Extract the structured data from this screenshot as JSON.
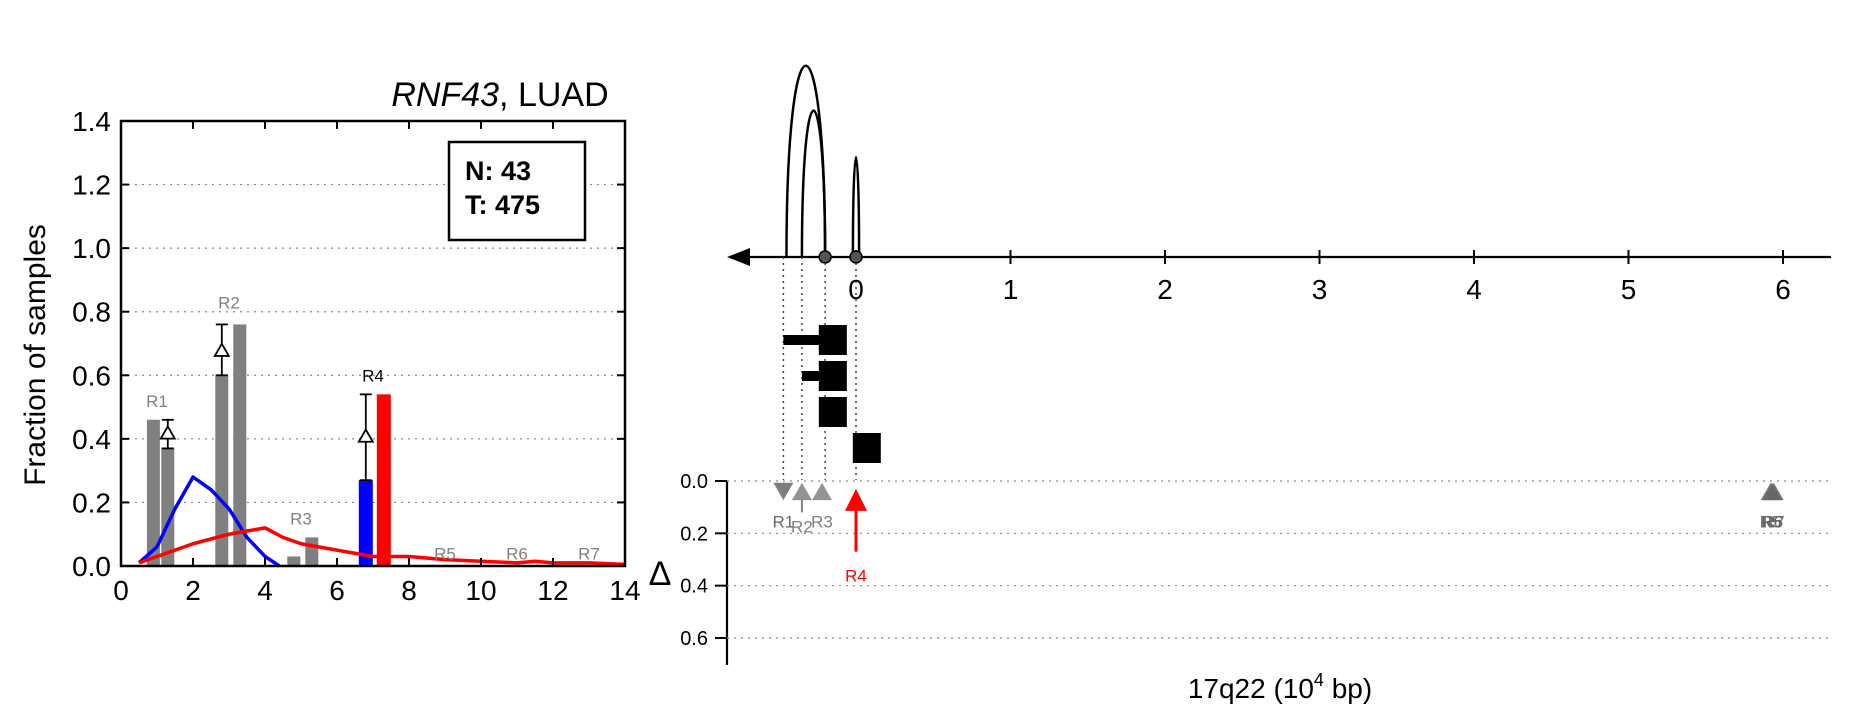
{
  "left_panel": {
    "title_gene": "RNF43",
    "title_rest": ", LUAD",
    "ylabel": "Fraction of samples",
    "legend_n": "N: 43",
    "legend_t": "T: 475"
  },
  "right_panel": {
    "xlabel_main": "17q22 (10",
    "xlabel_sup": "4",
    "xlabel_tail": " bp)",
    "delta_axis_label": "Δ"
  },
  "chart_data": [
    {
      "type": "bar",
      "title": "RNF43, LUAD",
      "xlabel": "",
      "ylabel": "Fraction of samples",
      "xlim": [
        0,
        14
      ],
      "ylim": [
        0,
        1.4
      ],
      "x_ticks": [
        "0",
        "2",
        "4",
        "6",
        "8",
        "10",
        "12",
        "14"
      ],
      "y_ticks": [
        "0.0",
        "0.2",
        "0.4",
        "0.6",
        "0.8",
        "1.0",
        "1.2",
        "1.4"
      ],
      "grid": "horizontal dotted",
      "legend_box": [
        "N: 43",
        "T: 475"
      ],
      "bars": [
        {
          "x": 0.9,
          "value": 0.46,
          "color": "#808080"
        },
        {
          "x": 1.3,
          "value": 0.37,
          "color": "#808080"
        },
        {
          "x": 2.8,
          "value": 0.6,
          "color": "#808080"
        },
        {
          "x": 3.3,
          "value": 0.76,
          "color": "#808080"
        },
        {
          "x": 4.8,
          "value": 0.03,
          "color": "#808080"
        },
        {
          "x": 5.3,
          "value": 0.09,
          "color": "#808080"
        },
        {
          "x": 6.8,
          "value": 0.27,
          "color": "#0000ff"
        },
        {
          "x": 7.3,
          "value": 0.54,
          "color": "#ff0000"
        }
      ],
      "region_labels": [
        {
          "label": "R1",
          "x": 1.0,
          "y": 0.5,
          "color": "#808080"
        },
        {
          "label": "R2",
          "x": 3.0,
          "y": 0.81,
          "color": "#808080"
        },
        {
          "label": "R3",
          "x": 5.0,
          "y": 0.13,
          "color": "#808080"
        },
        {
          "label": "R4",
          "x": 7.0,
          "y": 0.58,
          "color": "#000000"
        },
        {
          "label": "R5",
          "x": 9.0,
          "y": 0.02,
          "color": "#808080"
        },
        {
          "label": "R6",
          "x": 11.0,
          "y": 0.02,
          "color": "#808080"
        },
        {
          "label": "R7",
          "x": 13.0,
          "y": 0.02,
          "color": "#808080"
        }
      ],
      "delta_markers": [
        {
          "x": 1.3,
          "y": 0.42,
          "low": 0.37,
          "high": 0.46
        },
        {
          "x": 2.8,
          "y": 0.68,
          "low": 0.6,
          "high": 0.76
        },
        {
          "x": 6.8,
          "y": 0.41,
          "low": 0.27,
          "high": 0.54
        }
      ],
      "series": [
        {
          "color": "#0000ff",
          "x": [
            0.5,
            1.0,
            1.5,
            2.0,
            2.5,
            3.0,
            3.5,
            4.0,
            4.4
          ],
          "y": [
            0.01,
            0.06,
            0.18,
            0.28,
            0.24,
            0.18,
            0.09,
            0.03,
            0.0
          ]
        },
        {
          "color": "#ff0000",
          "x": [
            0.5,
            1.0,
            2.0,
            3.0,
            3.5,
            4.0,
            4.5,
            5.0,
            6.0,
            7.0,
            8.0,
            9.0,
            10.0,
            11.0,
            11.5,
            12.0,
            13.0,
            14.0
          ],
          "y": [
            0.01,
            0.03,
            0.07,
            0.1,
            0.11,
            0.12,
            0.09,
            0.07,
            0.05,
            0.03,
            0.03,
            0.02,
            0.015,
            0.01,
            0.015,
            0.01,
            0.01,
            0.005
          ]
        }
      ]
    },
    {
      "type": "scatter",
      "xlabel": "17q22 (10^4 bp)",
      "xlim": [
        -0.8,
        6.3
      ],
      "x_ticks": [
        "0",
        "1",
        "2",
        "3",
        "4",
        "5",
        "6"
      ],
      "arcs": [
        {
          "start": -0.45,
          "end": -0.2,
          "height": 1.0
        },
        {
          "start": -0.35,
          "end": -0.2,
          "height": 0.74
        },
        {
          "start": -0.02,
          "end": 0.02,
          "height": 0.47
        }
      ],
      "nodes": [
        -0.2,
        0.0
      ],
      "blocks": [
        {
          "x": -0.15,
          "row": 0,
          "stem_from": -0.47
        },
        {
          "x": -0.15,
          "row": 1,
          "stem_from": -0.35
        },
        {
          "x": -0.15,
          "row": 2,
          "stem_from": null
        },
        {
          "x": 0.07,
          "row": 3,
          "stem_from": 0.0
        }
      ],
      "dotted_links": [
        -0.47,
        -0.35,
        -0.2,
        0.0
      ],
      "delta_ylim": [
        0.0,
        0.6
      ],
      "delta_ticks": [
        "0.0",
        "0.2",
        "0.4",
        "0.6"
      ],
      "region_markers": [
        {
          "label": "R1",
          "x": -0.47,
          "delta": 0.04,
          "color": "#666666",
          "shape": "down"
        },
        {
          "label": "R2",
          "x": -0.35,
          "delta": 0.04,
          "color": "#808080",
          "shape": "up",
          "stem": 0.12
        },
        {
          "label": "R3",
          "x": -0.22,
          "delta": 0.04,
          "color": "#808080",
          "shape": "up"
        },
        {
          "label": "R4",
          "x": 0.0,
          "delta": 0.27,
          "color": "#ff0000",
          "shape": "arrow"
        },
        {
          "label": "R5",
          "x": 5.92,
          "delta": 0.04,
          "color": "#666666",
          "shape": "up"
        },
        {
          "label": "R6",
          "x": 5.93,
          "delta": 0.04,
          "color": "#666666",
          "shape": "up"
        },
        {
          "label": "R7",
          "x": 5.94,
          "delta": 0.04,
          "color": "#666666",
          "shape": "up"
        }
      ]
    }
  ]
}
